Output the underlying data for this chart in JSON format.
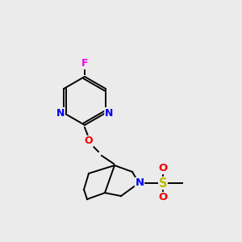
{
  "background_color": "#ebebeb",
  "atom_colors": {
    "C": "#000000",
    "N": "#0000ee",
    "O": "#ee0000",
    "F": "#ee00ee",
    "S": "#bbbb00"
  },
  "bond_color": "#000000",
  "figsize": [
    3.0,
    3.0
  ],
  "dpi": 100,
  "lw": 1.4
}
